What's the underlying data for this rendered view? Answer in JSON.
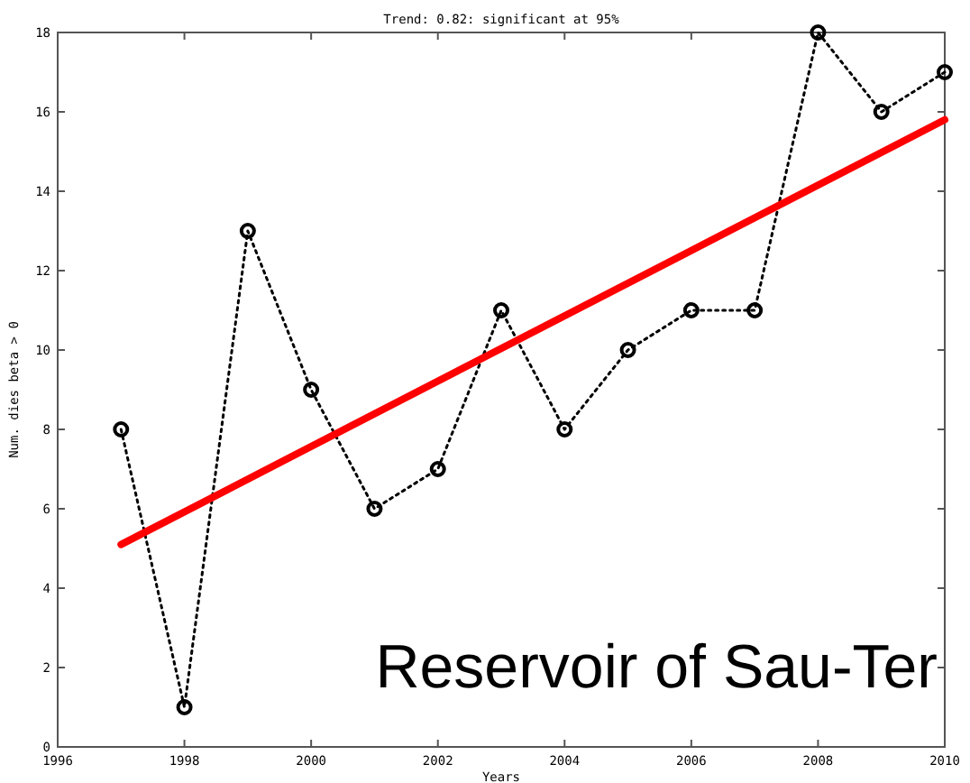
{
  "chart_data": {
    "type": "line",
    "title": "Trend: 0.82: significant at 95%",
    "xlabel": "Years",
    "ylabel": "Num. dies beta > 0",
    "x": [
      1997,
      1998,
      1999,
      2000,
      2001,
      2002,
      2003,
      2004,
      2005,
      2006,
      2007,
      2008,
      2009,
      2010
    ],
    "series": [
      {
        "color": "#000000",
        "marker": "circle",
        "line_style": "dotted",
        "values": [
          8,
          1,
          13,
          9,
          6,
          7,
          11,
          8,
          10,
          11,
          11,
          18,
          16,
          17
        ]
      },
      {
        "color": "#ff0000",
        "line_style": "solid",
        "marker": "none",
        "x": [
          1997,
          2010
        ],
        "values": [
          5.1,
          15.8
        ]
      }
    ],
    "xlim": [
      1996,
      2010
    ],
    "xticks": [
      1996,
      1998,
      2000,
      2002,
      2004,
      2006,
      2008,
      2010
    ],
    "ylim": [
      0,
      18
    ],
    "yticks": [
      0,
      2,
      4,
      6,
      8,
      10,
      12,
      14,
      16,
      18
    ],
    "grid": false,
    "annotations": [
      "Reservoir of Sau-Ter"
    ]
  }
}
